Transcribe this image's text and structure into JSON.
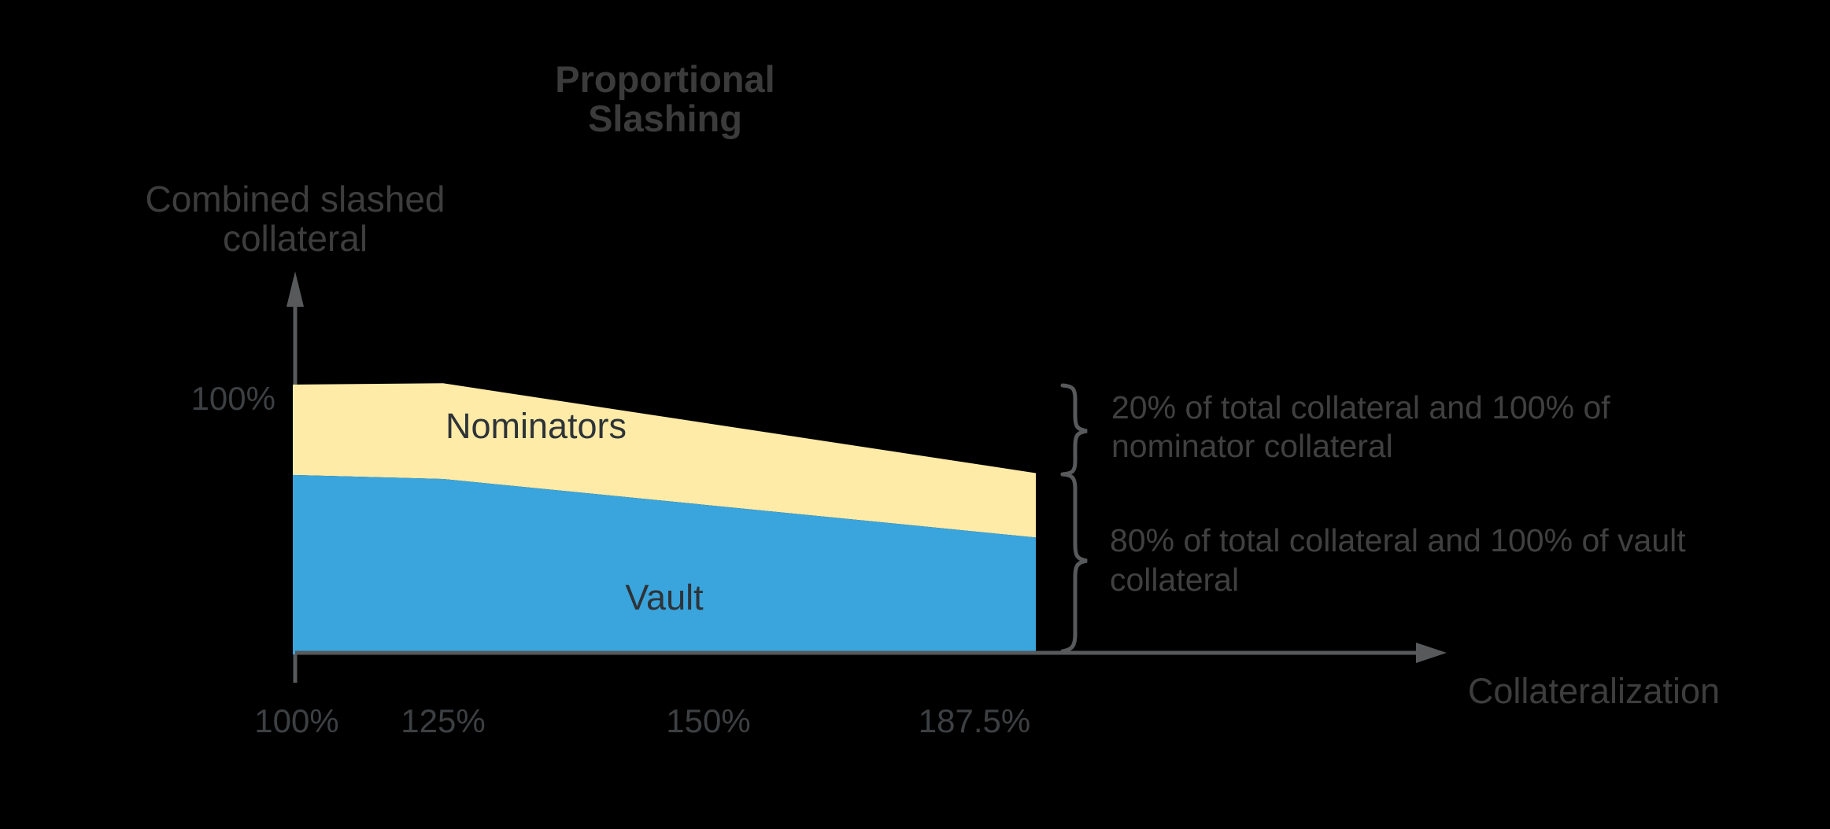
{
  "title": {
    "line1": "Proportional",
    "line2": "Slashing"
  },
  "y_axis": {
    "title_line1": "Combined slashed",
    "title_line2": "collateral",
    "tick": "100%"
  },
  "x_axis": {
    "title": "Collateralization",
    "ticks": [
      "100%",
      "125%",
      "150%",
      "187.5%"
    ]
  },
  "area_labels": {
    "nominators": "Nominators",
    "vault": "Vault"
  },
  "annotations": {
    "upper_line1": "20% of total collateral and 100% of",
    "upper_line2": "nominator collateral",
    "lower_line1": "80% of total collateral and 100% of vault",
    "lower_line2": "collateral"
  },
  "colors": {
    "background": "#000000",
    "nominators_fill": "#FEEBA7",
    "vault_fill": "#3AA5DC",
    "axis": "#58595B",
    "brace": "#58595B",
    "title_text": "#3B3B3B",
    "label_text": "#3D3D3D",
    "area_label_text": "#2E3338",
    "annotation_text": "#404040"
  },
  "chart_data": {
    "type": "area",
    "stacked": true,
    "title": "Proportional Slashing",
    "xlabel": "Collateralization",
    "ylabel": "Combined slashed collateral",
    "x": [
      100,
      125,
      187.5
    ],
    "x_tick_labels": [
      "100%",
      "125%",
      "150%",
      "187.5%"
    ],
    "y_tick_labels": [
      "100%"
    ],
    "total_slashed_pct": [
      100,
      100.5,
      67
    ],
    "series": [
      {
        "name": "Vault",
        "values_pct_of_axis": [
          66.3,
          64.8,
          43
        ]
      },
      {
        "name": "Nominators",
        "values_pct_of_axis": [
          33.7,
          35.7,
          24
        ]
      }
    ],
    "notes": [
      "Nominators band bracket: 20% of total collateral and 100% of nominator collateral",
      "Vault band bracket: 80% of total collateral and 100% of vault collateral"
    ],
    "legend_position": "in-chart labels",
    "grid": false
  }
}
